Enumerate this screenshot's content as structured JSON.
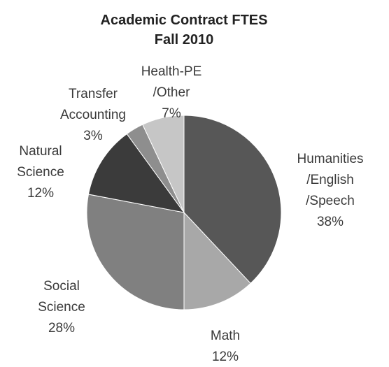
{
  "chart_data": {
    "type": "pie",
    "title": "Academic Contract FTES\nFall 2010",
    "categories": [
      "Humanities\n/English\n/Speech",
      "Math",
      "Social\nScience",
      "Natural\nScience",
      "Transfer\nAccounting",
      "Health-PE\n/Other"
    ],
    "values": [
      38,
      12,
      28,
      12,
      3,
      7
    ],
    "value_labels": [
      "38%",
      "12%",
      "28%",
      "12%",
      "3%",
      "7%"
    ],
    "colors": [
      "#575757",
      "#a8a8a8",
      "#808080",
      "#3b3b3b",
      "#8e8e8e",
      "#c6c6c6"
    ]
  }
}
